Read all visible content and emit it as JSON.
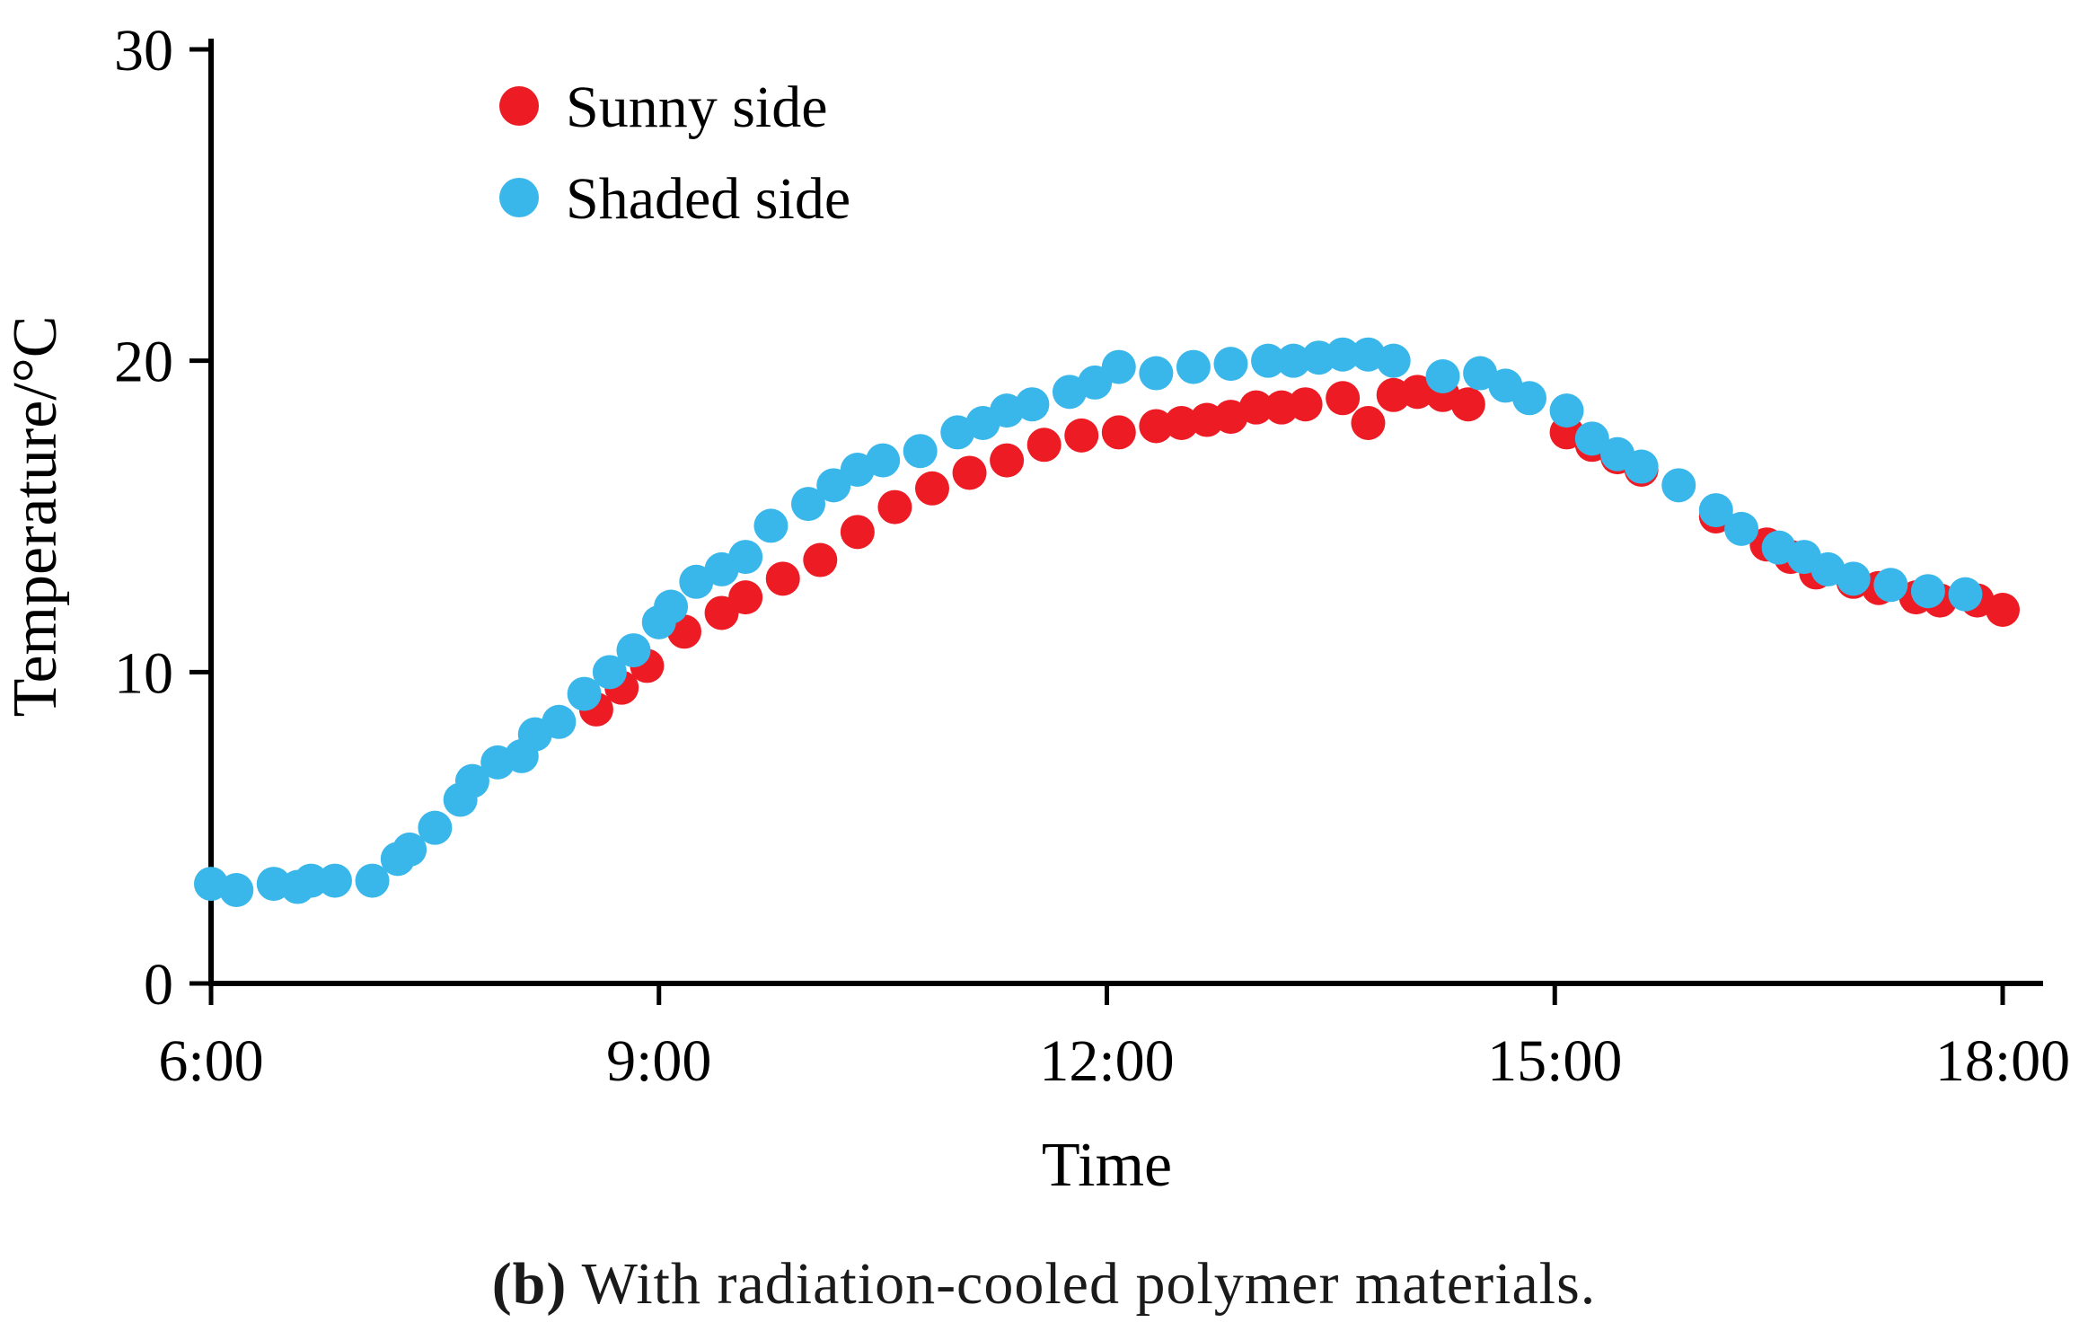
{
  "figure": {
    "caption_bold": "(b)",
    "caption_text": " With radiation-cooled polymer materials."
  },
  "chart_data": {
    "type": "scatter",
    "title": "",
    "xlabel": "Time",
    "ylabel": "Temperature/°C",
    "xlim": [
      6,
      18
    ],
    "ylim": [
      0,
      30
    ],
    "x_ticks": [
      6,
      9,
      12,
      15,
      18
    ],
    "x_tick_labels": [
      "6:00",
      "9:00",
      "12:00",
      "15:00",
      "18:00"
    ],
    "y_ticks": [
      0,
      10,
      20,
      30
    ],
    "y_tick_labels": [
      "0",
      "10",
      "20",
      "30"
    ],
    "grid": false,
    "legend_position": "upper-left-inside",
    "marker": "circle",
    "series": [
      {
        "name": "Sunny side",
        "color": "#ed1b24",
        "points": [
          [
            8.58,
            8.8
          ],
          [
            8.75,
            9.5
          ],
          [
            8.92,
            10.2
          ],
          [
            9.17,
            11.3
          ],
          [
            9.42,
            11.9
          ],
          [
            9.58,
            12.4
          ],
          [
            9.83,
            13.0
          ],
          [
            10.08,
            13.6
          ],
          [
            10.33,
            14.5
          ],
          [
            10.58,
            15.3
          ],
          [
            10.83,
            15.9
          ],
          [
            11.08,
            16.4
          ],
          [
            11.33,
            16.8
          ],
          [
            11.58,
            17.3
          ],
          [
            11.83,
            17.6
          ],
          [
            12.08,
            17.7
          ],
          [
            12.33,
            17.9
          ],
          [
            12.5,
            18.0
          ],
          [
            12.67,
            18.1
          ],
          [
            12.83,
            18.2
          ],
          [
            13.0,
            18.5
          ],
          [
            13.17,
            18.5
          ],
          [
            13.33,
            18.6
          ],
          [
            13.58,
            18.8
          ],
          [
            13.75,
            18.0
          ],
          [
            13.92,
            18.9
          ],
          [
            14.08,
            19.0
          ],
          [
            14.25,
            18.9
          ],
          [
            14.42,
            18.6
          ],
          [
            15.08,
            17.7
          ],
          [
            15.25,
            17.3
          ],
          [
            15.42,
            16.9
          ],
          [
            15.58,
            16.5
          ],
          [
            16.08,
            15.0
          ],
          [
            16.42,
            14.1
          ],
          [
            16.58,
            13.7
          ],
          [
            16.75,
            13.2
          ],
          [
            17.0,
            12.9
          ],
          [
            17.17,
            12.7
          ],
          [
            17.42,
            12.4
          ],
          [
            17.58,
            12.3
          ],
          [
            17.83,
            12.3
          ],
          [
            18.0,
            12.0
          ]
        ]
      },
      {
        "name": "Shaded side",
        "color": "#3ab7ea",
        "points": [
          [
            6.0,
            3.2
          ],
          [
            6.17,
            3.0
          ],
          [
            6.42,
            3.2
          ],
          [
            6.58,
            3.1
          ],
          [
            6.67,
            3.3
          ],
          [
            6.83,
            3.3
          ],
          [
            7.08,
            3.3
          ],
          [
            7.25,
            4.0
          ],
          [
            7.33,
            4.3
          ],
          [
            7.5,
            5.0
          ],
          [
            7.67,
            5.9
          ],
          [
            7.75,
            6.5
          ],
          [
            7.92,
            7.1
          ],
          [
            8.08,
            7.3
          ],
          [
            8.17,
            8.0
          ],
          [
            8.33,
            8.4
          ],
          [
            8.5,
            9.3
          ],
          [
            8.67,
            10.0
          ],
          [
            8.83,
            10.7
          ],
          [
            9.0,
            11.6
          ],
          [
            9.08,
            12.1
          ],
          [
            9.25,
            12.9
          ],
          [
            9.42,
            13.3
          ],
          [
            9.58,
            13.7
          ],
          [
            9.75,
            14.7
          ],
          [
            10.0,
            15.4
          ],
          [
            10.17,
            16.0
          ],
          [
            10.33,
            16.5
          ],
          [
            10.5,
            16.8
          ],
          [
            10.75,
            17.1
          ],
          [
            11.0,
            17.7
          ],
          [
            11.17,
            18.0
          ],
          [
            11.33,
            18.4
          ],
          [
            11.5,
            18.6
          ],
          [
            11.75,
            19.0
          ],
          [
            11.92,
            19.3
          ],
          [
            12.08,
            19.8
          ],
          [
            12.33,
            19.6
          ],
          [
            12.58,
            19.8
          ],
          [
            12.83,
            19.9
          ],
          [
            13.08,
            20.0
          ],
          [
            13.25,
            20.0
          ],
          [
            13.42,
            20.1
          ],
          [
            13.58,
            20.2
          ],
          [
            13.75,
            20.2
          ],
          [
            13.92,
            20.0
          ],
          [
            14.25,
            19.5
          ],
          [
            14.5,
            19.6
          ],
          [
            14.67,
            19.2
          ],
          [
            14.83,
            18.8
          ],
          [
            15.08,
            18.4
          ],
          [
            15.25,
            17.5
          ],
          [
            15.42,
            17.0
          ],
          [
            15.58,
            16.6
          ],
          [
            15.83,
            16.0
          ],
          [
            16.08,
            15.2
          ],
          [
            16.25,
            14.6
          ],
          [
            16.5,
            14.0
          ],
          [
            16.67,
            13.7
          ],
          [
            16.83,
            13.3
          ],
          [
            17.0,
            13.0
          ],
          [
            17.25,
            12.8
          ],
          [
            17.5,
            12.6
          ],
          [
            17.75,
            12.5
          ]
        ]
      }
    ]
  }
}
